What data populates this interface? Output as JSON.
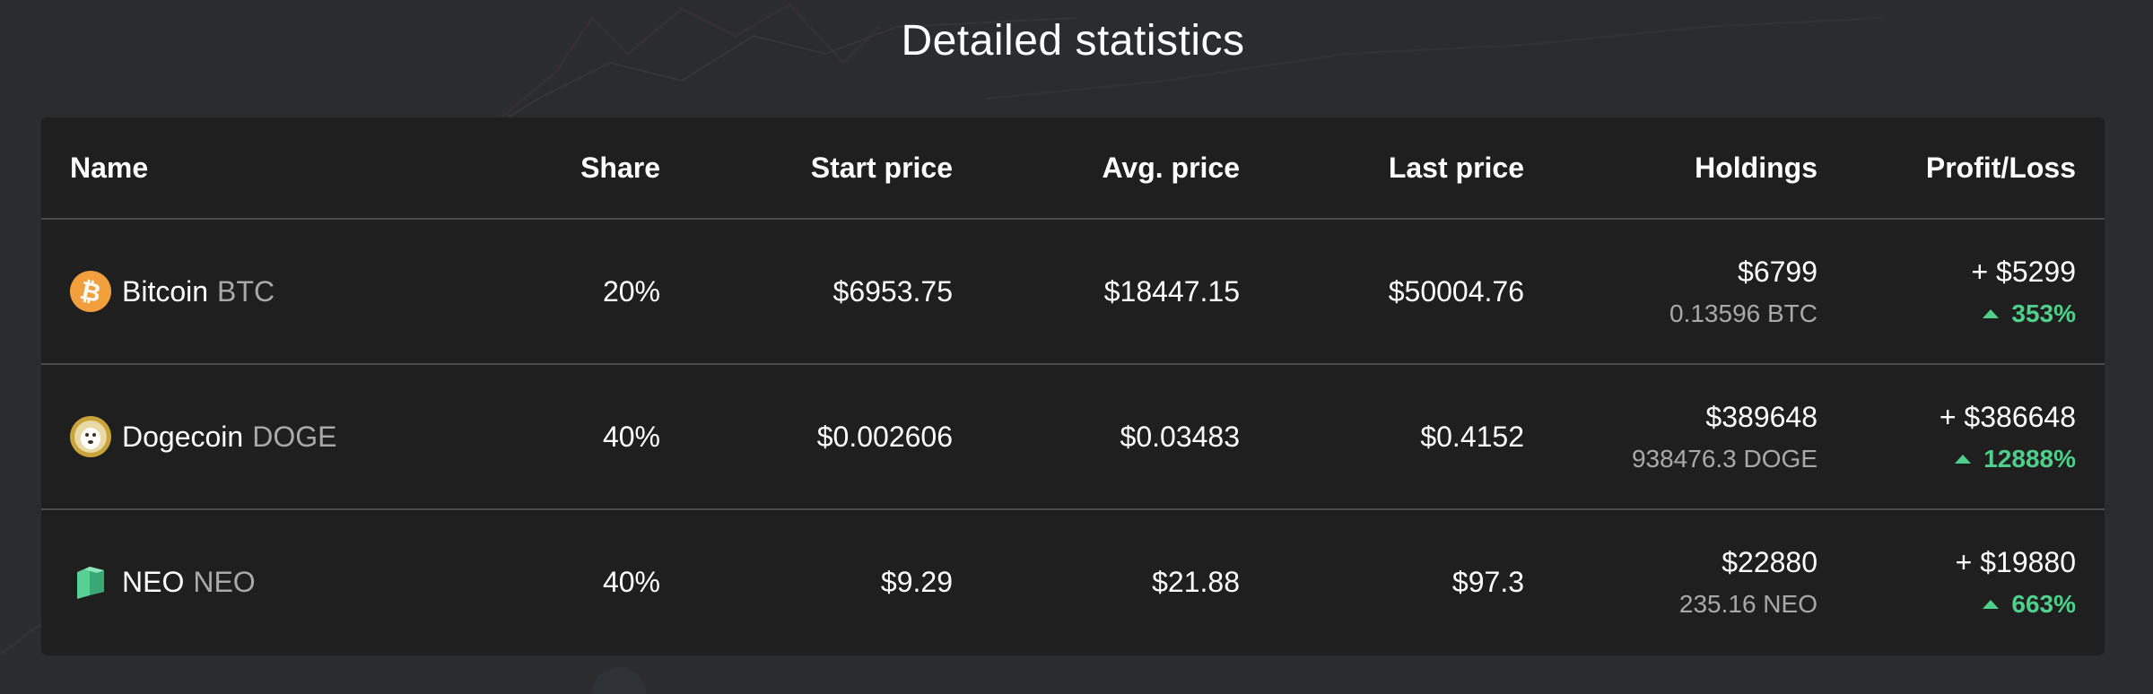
{
  "page": {
    "title": "Detailed statistics"
  },
  "table": {
    "headers": {
      "name": "Name",
      "share": "Share",
      "start_price": "Start price",
      "avg_price": "Avg. price",
      "last_price": "Last price",
      "holdings": "Holdings",
      "profit_loss": "Profit/Loss"
    },
    "rows": [
      {
        "name": "Bitcoin",
        "symbol": "BTC",
        "icon": "bitcoin-icon",
        "share": "20%",
        "start_price": "$6953.75",
        "avg_price": "$18447.15",
        "last_price": "$50004.76",
        "holdings_value": "$6799",
        "holdings_amount": "0.13596 BTC",
        "profit_value": "+ $5299",
        "profit_percent": "353%"
      },
      {
        "name": "Dogecoin",
        "symbol": "DOGE",
        "icon": "dogecoin-icon",
        "share": "40%",
        "start_price": "$0.002606",
        "avg_price": "$0.03483",
        "last_price": "$0.4152",
        "holdings_value": "$389648",
        "holdings_amount": "938476.3 DOGE",
        "profit_value": "+ $386648",
        "profit_percent": "12888%"
      },
      {
        "name": "NEO",
        "symbol": "NEO",
        "icon": "neo-icon",
        "share": "40%",
        "start_price": "$9.29",
        "avg_price": "$21.88",
        "last_price": "$97.3",
        "holdings_value": "$22880",
        "holdings_amount": "235.16 NEO",
        "profit_value": "+ $19880",
        "profit_percent": "663%"
      }
    ]
  },
  "colors": {
    "background": "#2b2c2e",
    "card": "#1f1f1f",
    "positive": "#4fd08a",
    "muted_text": "#a9a9a9",
    "bitcoin": "#f2a03d",
    "dogecoin": "#c8a43a",
    "neo": "#58cf95"
  }
}
